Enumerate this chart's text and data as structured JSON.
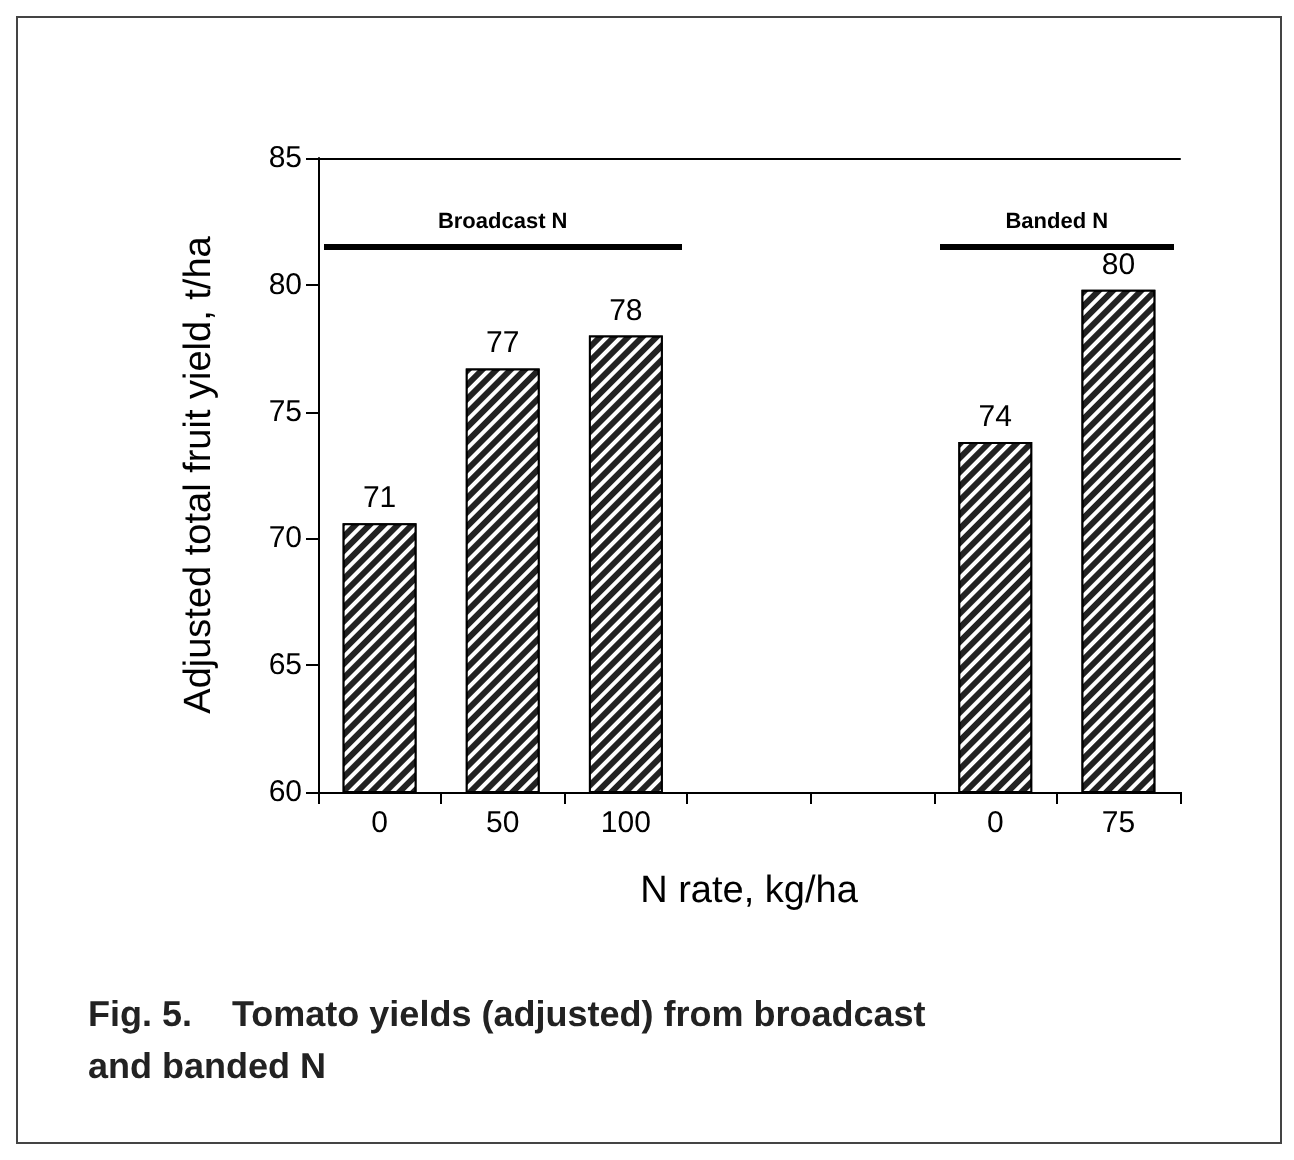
{
  "chart_data": {
    "type": "bar",
    "title": "Fig. 5.    Tomato yields (adjusted) from broadcast\nand banded N",
    "xlabel": "N rate, kg/ha",
    "ylabel": "Adjusted total fruit yield, t/ha",
    "categories": [
      "0",
      "50",
      "100",
      null,
      null,
      "0",
      "75"
    ],
    "values": [
      70.6,
      76.7,
      78.0,
      null,
      null,
      73.8,
      79.8
    ],
    "value_labels": [
      "71",
      "77",
      "78",
      null,
      null,
      "74",
      "80"
    ],
    "color": "#222222",
    "ylim": [
      60,
      85
    ],
    "yticks": [
      60,
      65,
      70,
      75,
      80,
      85
    ],
    "grid": false,
    "annotations": [
      "Broadcast N",
      "Banded N"
    ]
  }
}
